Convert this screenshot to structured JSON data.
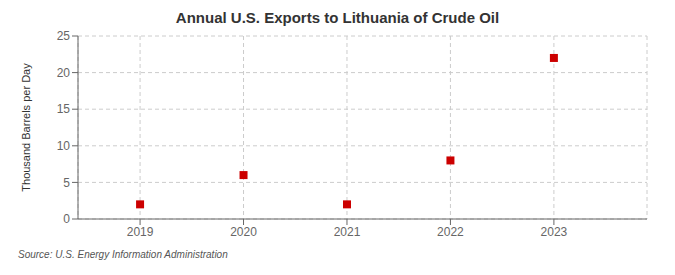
{
  "chart_data": {
    "type": "scatter",
    "title": "Annual U.S. Exports to Lithuania of Crude Oil",
    "ylabel": "Thousand Barrels per Day",
    "annotations": [
      "Source: U.S. Energy Information Administration"
    ],
    "x": [
      2019,
      2020,
      2021,
      2022,
      2023
    ],
    "values": [
      2,
      6,
      2,
      8,
      22
    ],
    "color": "#CC0000",
    "marker": "square",
    "xlim": [
      2018.4,
      2023.9
    ],
    "xticks": [
      2019,
      2020,
      2021,
      2022,
      2023
    ],
    "ylim": [
      0,
      25
    ],
    "yticks": [
      0,
      5,
      10,
      15,
      20,
      25
    ],
    "grid": true
  }
}
